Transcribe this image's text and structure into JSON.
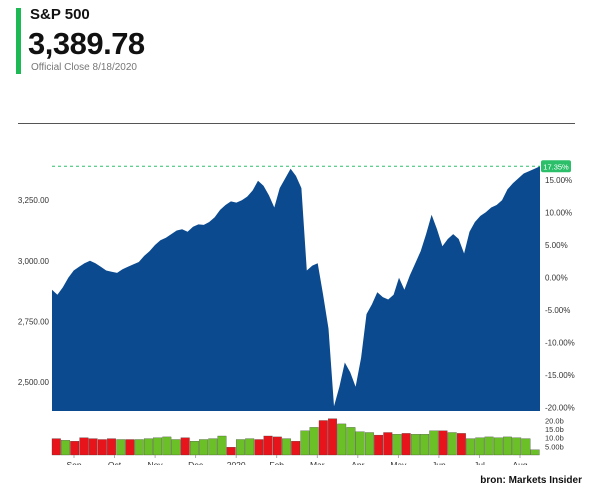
{
  "header": {
    "ticker": "S&P 500",
    "price": "3,389.78",
    "close_label": "Official Close 8/18/2020",
    "accent_color": "#1db954"
  },
  "source": "bron: Markets Insider",
  "chart_data": {
    "type": "area",
    "fill_color": "#0b4a8f",
    "y_ticks": [
      "3,250.00",
      "3,000.00",
      "2,750.00",
      "2,500.00"
    ],
    "pct_ticks": [
      "15.00%",
      "10.00%",
      "5.00%",
      "0.00%",
      "-5.00%",
      "-10.00%",
      "-15.00%",
      "-20.00%"
    ],
    "x_ticks": [
      "Sep",
      "Oct",
      "Nov",
      "Dec",
      "2020",
      "Feb",
      "Mar",
      "Apr",
      "May",
      "Jun",
      "Jul",
      "Aug"
    ],
    "volume_ticks": [
      "20.0b",
      "15.0b",
      "10.0b",
      "5.00b"
    ],
    "last_change_label": "17.35%",
    "ylim": [
      2380,
      3420
    ],
    "pct_lim": [
      -20.5,
      18.2
    ],
    "volume_lim": [
      0,
      22
    ],
    "series": [
      {
        "values": [
          2880,
          2860,
          2890,
          2930,
          2960,
          2975,
          2990,
          3000,
          2990,
          2975,
          2960,
          2955,
          2950,
          2965,
          2975,
          2985,
          2995,
          3020,
          3040,
          3065,
          3085,
          3095,
          3110,
          3125,
          3130,
          3120,
          3140,
          3150,
          3148,
          3160,
          3180,
          3210,
          3230,
          3245,
          3240,
          3250,
          3265,
          3290,
          3330,
          3310,
          3270,
          3220,
          3300,
          3340,
          3380,
          3350,
          3300,
          2960,
          2980,
          2990,
          2860,
          2720,
          2400,
          2480,
          2580,
          2540,
          2480,
          2600,
          2780,
          2820,
          2870,
          2850,
          2840,
          2860,
          2930,
          2880,
          2940,
          2990,
          3040,
          3110,
          3190,
          3130,
          3060,
          3090,
          3110,
          3090,
          3030,
          3120,
          3160,
          3185,
          3200,
          3220,
          3230,
          3250,
          3295,
          3320,
          3340,
          3360,
          3370,
          3380,
          3390
        ]
      }
    ],
    "volume": [
      {
        "value": 9.5,
        "up": false
      },
      {
        "value": 8.5,
        "up": true
      },
      {
        "value": 8,
        "up": false
      },
      {
        "value": 10,
        "up": false
      },
      {
        "value": 9.5,
        "up": false
      },
      {
        "value": 9,
        "up": false
      },
      {
        "value": 9.5,
        "up": false
      },
      {
        "value": 9,
        "up": true
      },
      {
        "value": 9,
        "up": false
      },
      {
        "value": 9,
        "up": true
      },
      {
        "value": 9.5,
        "up": true
      },
      {
        "value": 10,
        "up": true
      },
      {
        "value": 10.5,
        "up": true
      },
      {
        "value": 9,
        "up": true
      },
      {
        "value": 10,
        "up": false
      },
      {
        "value": 8,
        "up": true
      },
      {
        "value": 9,
        "up": true
      },
      {
        "value": 9.5,
        "up": true
      },
      {
        "value": 11,
        "up": true
      },
      {
        "value": 4.5,
        "up": false
      },
      {
        "value": 9,
        "up": true
      },
      {
        "value": 9.5,
        "up": true
      },
      {
        "value": 9,
        "up": false
      },
      {
        "value": 11,
        "up": false
      },
      {
        "value": 10.5,
        "up": false
      },
      {
        "value": 9.5,
        "up": true
      },
      {
        "value": 8,
        "up": false
      },
      {
        "value": 14,
        "up": true
      },
      {
        "value": 16,
        "up": true
      },
      {
        "value": 20,
        "up": false
      },
      {
        "value": 21,
        "up": false
      },
      {
        "value": 18,
        "up": true
      },
      {
        "value": 16,
        "up": true
      },
      {
        "value": 13.5,
        "up": true
      },
      {
        "value": 13,
        "up": true
      },
      {
        "value": 11.5,
        "up": false
      },
      {
        "value": 13,
        "up": false
      },
      {
        "value": 12,
        "up": true
      },
      {
        "value": 12.5,
        "up": false
      },
      {
        "value": 12,
        "up": true
      },
      {
        "value": 12,
        "up": true
      },
      {
        "value": 14,
        "up": true
      },
      {
        "value": 14,
        "up": false
      },
      {
        "value": 13,
        "up": true
      },
      {
        "value": 12.5,
        "up": false
      },
      {
        "value": 9.5,
        "up": true
      },
      {
        "value": 10,
        "up": true
      },
      {
        "value": 10.5,
        "up": true
      },
      {
        "value": 10,
        "up": true
      },
      {
        "value": 10.5,
        "up": true
      },
      {
        "value": 10,
        "up": true
      },
      {
        "value": 9.5,
        "up": true
      },
      {
        "value": 3,
        "up": true
      }
    ]
  }
}
